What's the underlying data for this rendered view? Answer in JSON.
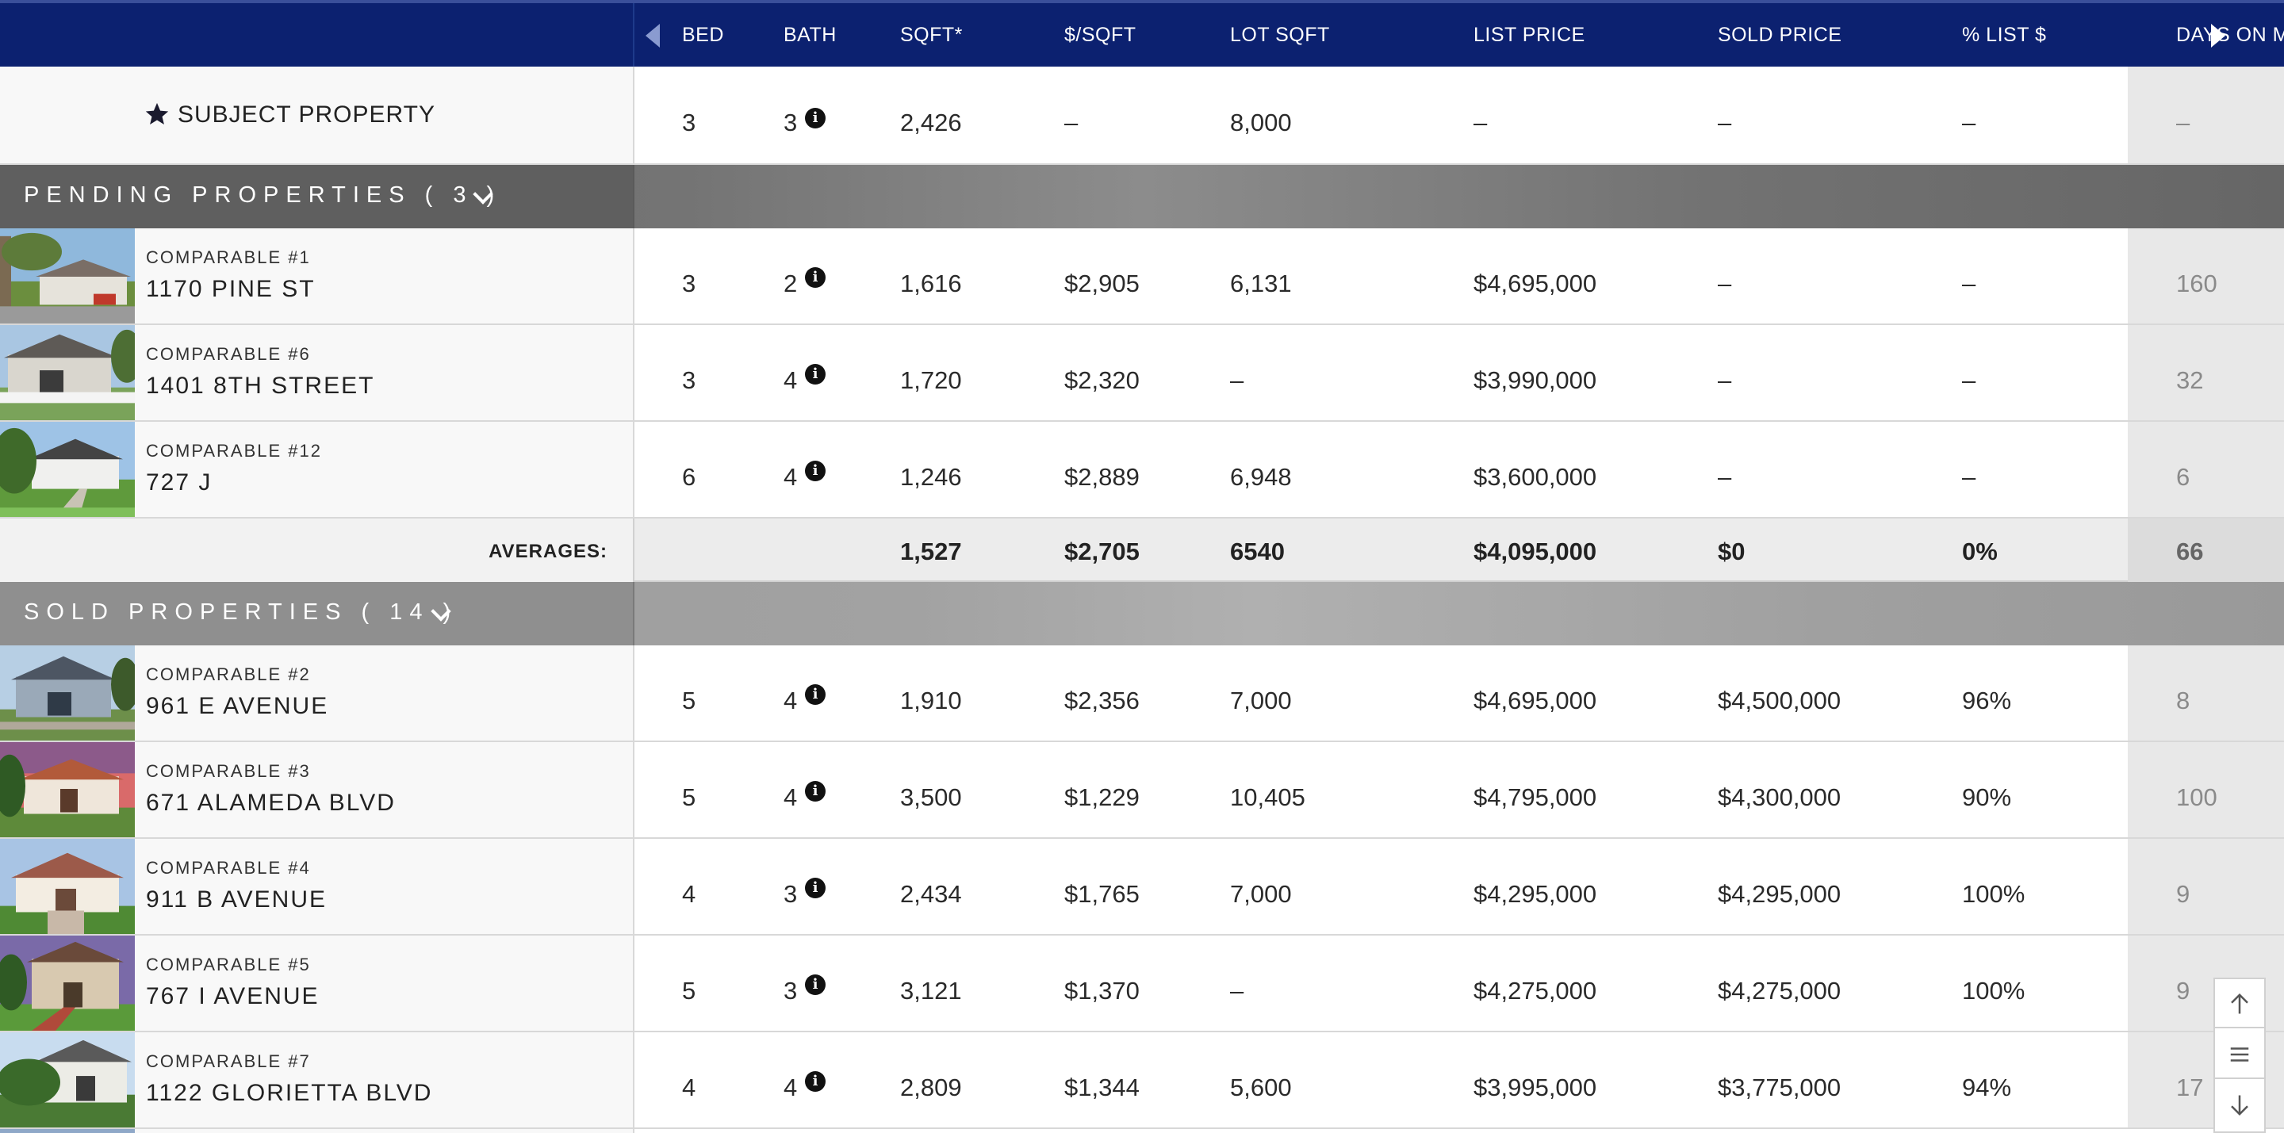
{
  "columns": {
    "bed": "BED",
    "bath": "BATH",
    "sqft": "SQFT*",
    "price_per_sqft": "$/SQFT",
    "lot_sqft": "LOT SQFT",
    "list_price": "LIST PRICE",
    "sold_price": "SOLD PRICE",
    "pct_list": "% LIST $",
    "days_on_market": "DAYS ON MI"
  },
  "subject": {
    "label": "SUBJECT PROPERTY",
    "icon": "star-icon",
    "bed": "3",
    "bath": "3",
    "sqft": "2,426",
    "price_per_sqft": "–",
    "lot_sqft": "8,000",
    "list_price": "–",
    "sold_price": "–",
    "pct_list": "–",
    "dom": "–"
  },
  "pending": {
    "title": "PENDING PROPERTIES ( 3 )",
    "rows": [
      {
        "label": "COMPARABLE #1",
        "address": "1170 PINE ST",
        "bed": "3",
        "bath": "2",
        "sqft": "1,616",
        "price_per_sqft": "$2,905",
        "lot_sqft": "6,131",
        "list_price": "$4,695,000",
        "sold_price": "–",
        "pct_list": "–",
        "dom": "160"
      },
      {
        "label": "COMPARABLE #6",
        "address": "1401 8TH STREET",
        "bed": "3",
        "bath": "4",
        "sqft": "1,720",
        "price_per_sqft": "$2,320",
        "lot_sqft": "–",
        "list_price": "$3,990,000",
        "sold_price": "–",
        "pct_list": "–",
        "dom": "32"
      },
      {
        "label": "COMPARABLE #12",
        "address": "727 J",
        "bed": "6",
        "bath": "4",
        "sqft": "1,246",
        "price_per_sqft": "$2,889",
        "lot_sqft": "6,948",
        "list_price": "$3,600,000",
        "sold_price": "–",
        "pct_list": "–",
        "dom": "6"
      }
    ],
    "averages": {
      "label": "AVERAGES:",
      "sqft": "1,527",
      "price_per_sqft": "$2,705",
      "lot_sqft": "6540",
      "list_price": "$4,095,000",
      "sold_price": "$0",
      "pct_list": "0%",
      "dom": "66"
    }
  },
  "sold": {
    "title": "SOLD PROPERTIES ( 14 )",
    "rows": [
      {
        "label": "COMPARABLE #2",
        "address": "961 E AVENUE",
        "bed": "5",
        "bath": "4",
        "sqft": "1,910",
        "price_per_sqft": "$2,356",
        "lot_sqft": "7,000",
        "list_price": "$4,695,000",
        "sold_price": "$4,500,000",
        "pct_list": "96%",
        "dom": "8"
      },
      {
        "label": "COMPARABLE #3",
        "address": "671 ALAMEDA BLVD",
        "bed": "5",
        "bath": "4",
        "sqft": "3,500",
        "price_per_sqft": "$1,229",
        "lot_sqft": "10,405",
        "list_price": "$4,795,000",
        "sold_price": "$4,300,000",
        "pct_list": "90%",
        "dom": "100"
      },
      {
        "label": "COMPARABLE #4",
        "address": "911 B AVENUE",
        "bed": "4",
        "bath": "3",
        "sqft": "2,434",
        "price_per_sqft": "$1,765",
        "lot_sqft": "7,000",
        "list_price": "$4,295,000",
        "sold_price": "$4,295,000",
        "pct_list": "100%",
        "dom": "9"
      },
      {
        "label": "COMPARABLE #5",
        "address": "767 I AVENUE",
        "bed": "5",
        "bath": "3",
        "sqft": "3,121",
        "price_per_sqft": "$1,370",
        "lot_sqft": "–",
        "list_price": "$4,275,000",
        "sold_price": "$4,275,000",
        "pct_list": "100%",
        "dom": "9"
      },
      {
        "label": "COMPARABLE #7",
        "address": "1122 GLORIETTA BLVD",
        "bed": "4",
        "bath": "4",
        "sqft": "2,809",
        "price_per_sqft": "$1,344",
        "lot_sqft": "5,600",
        "list_price": "$3,995,000",
        "sold_price": "$3,775,000",
        "pct_list": "94%",
        "dom": "17"
      }
    ]
  },
  "icons": {
    "info": "i",
    "scroll_left": "triangle-left-icon",
    "scroll_right": "triangle-right-icon",
    "nav_up": "arrow-up-icon",
    "nav_menu": "hamburger-menu-icon",
    "nav_down": "arrow-down-icon"
  },
  "colors": {
    "header_bg": "#0c2170",
    "section_bg": "#6e6e6e",
    "dom_column_bg": "#e8e8e8"
  }
}
